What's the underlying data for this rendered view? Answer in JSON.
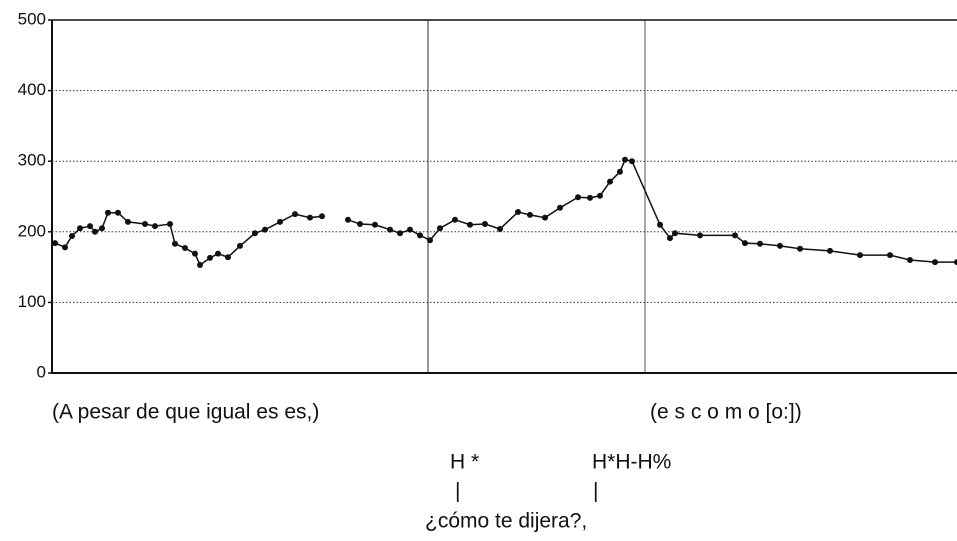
{
  "chart_data": {
    "type": "line",
    "ylim": [
      0,
      500
    ],
    "yticks": [
      0,
      100,
      200,
      300,
      400,
      500
    ],
    "grid": true,
    "xlim": [
      0,
      905
    ],
    "x": [
      3,
      13,
      20,
      28,
      38,
      43,
      50,
      56,
      66,
      76,
      93,
      103,
      118,
      123,
      133,
      143,
      148,
      158,
      166,
      176,
      188,
      203,
      213,
      228,
      243,
      258,
      270,
      283,
      296,
      308,
      323,
      338,
      348,
      358,
      368,
      378,
      388,
      403,
      418,
      433,
      448,
      466,
      478,
      493,
      508,
      526,
      538,
      548,
      558,
      568,
      573,
      580,
      608,
      618,
      623,
      648,
      683,
      693,
      708,
      728,
      748,
      778,
      808,
      838,
      858,
      883,
      905
    ],
    "series": [
      {
        "color": "#111111",
        "values": [
          184,
          178,
          194,
          205,
          208,
          200,
          205,
          227,
          227,
          214,
          211,
          208,
          211,
          183,
          177,
          169,
          153,
          163,
          169,
          164,
          180,
          198,
          203,
          214,
          225,
          220,
          222,
          null,
          217,
          211,
          210,
          203,
          198,
          203,
          195,
          188,
          205,
          217,
          210,
          211,
          204,
          228,
          224,
          220,
          234,
          249,
          248,
          251,
          271,
          285,
          302,
          300,
          210,
          191,
          198,
          195,
          195,
          184,
          183,
          180,
          176,
          173,
          167,
          167,
          160,
          157,
          157
        ]
      }
    ],
    "annotations": [
      "(A pesar de que igual es es,)",
      "(e s c o m o [o:])",
      "H *",
      "H*H-H%",
      "|",
      "|",
      "¿cómo te dijera?,"
    ]
  }
}
